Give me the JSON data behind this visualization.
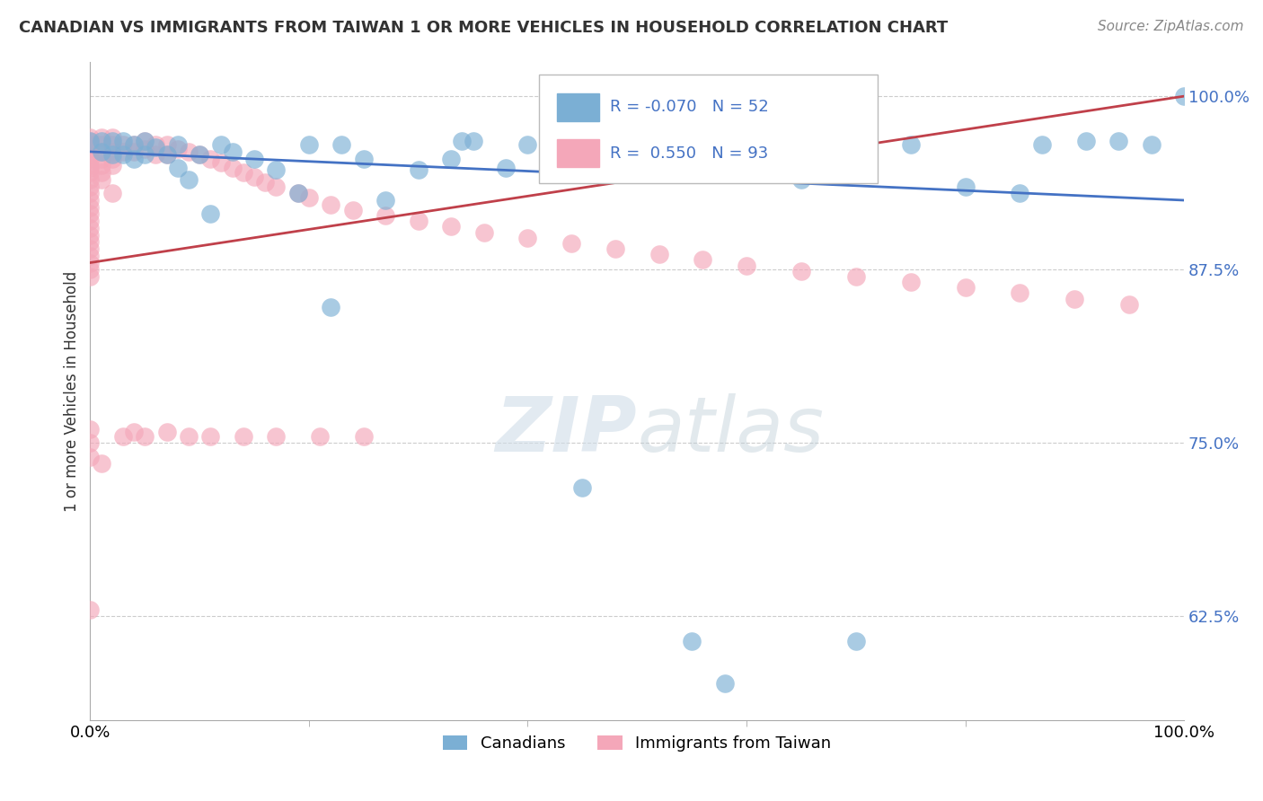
{
  "title": "CANADIAN VS IMMIGRANTS FROM TAIWAN 1 OR MORE VEHICLES IN HOUSEHOLD CORRELATION CHART",
  "source": "Source: ZipAtlas.com",
  "ylabel": "1 or more Vehicles in Household",
  "background_color": "#ffffff",
  "legend_labels": [
    "Canadians",
    "Immigrants from Taiwan"
  ],
  "blue_R": -0.07,
  "blue_N": 52,
  "pink_R": 0.55,
  "pink_N": 93,
  "blue_color": "#7bafd4",
  "pink_color": "#f4a7b9",
  "trendline_blue": "#4472c4",
  "trendline_pink": "#c0404a",
  "xmin": 0.0,
  "xmax": 1.0,
  "ymin": 0.55,
  "ymax": 1.025,
  "yticks": [
    0.625,
    0.75,
    0.875,
    1.0
  ],
  "ytick_labels": [
    "62.5%",
    "75.0%",
    "87.5%",
    "100.0%"
  ],
  "xtick_labels": [
    "0.0%",
    "100.0%"
  ],
  "blue_trendline_x": [
    0.0,
    1.0
  ],
  "blue_trendline_y": [
    0.96,
    0.925
  ],
  "pink_trendline_x": [
    0.0,
    1.0
  ],
  "pink_trendline_y": [
    0.88,
    1.0
  ],
  "blue_x": [
    0.0,
    0.01,
    0.01,
    0.02,
    0.02,
    0.03,
    0.03,
    0.04,
    0.04,
    0.05,
    0.05,
    0.06,
    0.07,
    0.08,
    0.08,
    0.09,
    0.1,
    0.11,
    0.12,
    0.13,
    0.15,
    0.17,
    0.19,
    0.2,
    0.22,
    0.23,
    0.25,
    0.27,
    0.3,
    0.33,
    0.35,
    0.38,
    0.4,
    0.42,
    0.45,
    0.5,
    0.55,
    0.58,
    0.6,
    0.62,
    0.65,
    0.7,
    0.75,
    0.8,
    0.85,
    0.87,
    0.91,
    0.94,
    0.97,
    1.0,
    0.34,
    0.47
  ],
  "blue_y": [
    0.968,
    0.968,
    0.96,
    0.968,
    0.958,
    0.968,
    0.958,
    0.965,
    0.955,
    0.968,
    0.958,
    0.963,
    0.958,
    0.965,
    0.948,
    0.94,
    0.958,
    0.915,
    0.965,
    0.96,
    0.955,
    0.947,
    0.93,
    0.965,
    0.848,
    0.965,
    0.955,
    0.925,
    0.947,
    0.955,
    0.968,
    0.948,
    0.965,
    0.965,
    0.718,
    0.947,
    0.607,
    0.577,
    0.965,
    0.965,
    0.94,
    0.607,
    0.965,
    0.935,
    0.93,
    0.965,
    0.968,
    0.968,
    0.965,
    1.0,
    0.968,
    0.968
  ],
  "pink_x": [
    0.0,
    0.0,
    0.0,
    0.0,
    0.0,
    0.0,
    0.0,
    0.0,
    0.0,
    0.0,
    0.0,
    0.0,
    0.0,
    0.0,
    0.0,
    0.0,
    0.0,
    0.0,
    0.0,
    0.0,
    0.0,
    0.0,
    0.0,
    0.0,
    0.0,
    0.01,
    0.01,
    0.01,
    0.01,
    0.01,
    0.01,
    0.01,
    0.02,
    0.02,
    0.02,
    0.02,
    0.02,
    0.03,
    0.03,
    0.04,
    0.04,
    0.05,
    0.05,
    0.06,
    0.06,
    0.07,
    0.07,
    0.08,
    0.09,
    0.1,
    0.11,
    0.12,
    0.13,
    0.14,
    0.15,
    0.16,
    0.17,
    0.19,
    0.2,
    0.22,
    0.24,
    0.27,
    0.3,
    0.33,
    0.36,
    0.4,
    0.44,
    0.48,
    0.52,
    0.56,
    0.6,
    0.65,
    0.7,
    0.75,
    0.8,
    0.85,
    0.9,
    0.95,
    0.0,
    0.0,
    0.0,
    0.01,
    0.02,
    0.03,
    0.04,
    0.05,
    0.07,
    0.09,
    0.11,
    0.14,
    0.17,
    0.21,
    0.25
  ],
  "pink_y": [
    0.97,
    0.968,
    0.965,
    0.962,
    0.958,
    0.955,
    0.95,
    0.948,
    0.945,
    0.94,
    0.935,
    0.93,
    0.925,
    0.92,
    0.915,
    0.91,
    0.905,
    0.9,
    0.895,
    0.89,
    0.885,
    0.88,
    0.875,
    0.87,
    0.63,
    0.97,
    0.965,
    0.96,
    0.955,
    0.95,
    0.945,
    0.94,
    0.97,
    0.965,
    0.96,
    0.955,
    0.95,
    0.965,
    0.96,
    0.965,
    0.96,
    0.968,
    0.962,
    0.965,
    0.958,
    0.965,
    0.958,
    0.962,
    0.96,
    0.958,
    0.955,
    0.952,
    0.948,
    0.945,
    0.942,
    0.938,
    0.935,
    0.93,
    0.927,
    0.922,
    0.918,
    0.914,
    0.91,
    0.906,
    0.902,
    0.898,
    0.894,
    0.89,
    0.886,
    0.882,
    0.878,
    0.874,
    0.87,
    0.866,
    0.862,
    0.858,
    0.854,
    0.85,
    0.76,
    0.75,
    0.74,
    0.735,
    0.93,
    0.755,
    0.758,
    0.755,
    0.758,
    0.755,
    0.755,
    0.755,
    0.755,
    0.755,
    0.755
  ]
}
